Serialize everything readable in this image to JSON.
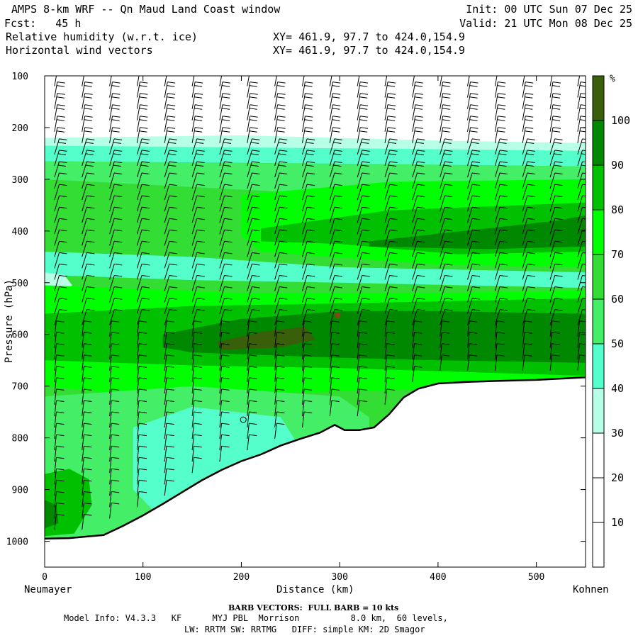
{
  "header": {
    "title": "AMPS 8-km WRF -- Qn Maud Land Coast window",
    "fcst": "Fcst:   45 h",
    "field1": "Relative humidity (w.r.t. ice)",
    "field2": "Horizontal wind vectors",
    "init": "Init: 00 UTC Sun 07 Dec 25",
    "valid": "Valid: 21 UTC Mon 08 Dec 25",
    "xy1": "XY= 461.9, 97.7 to 424.0,154.9",
    "xy2": "XY= 461.9, 97.7 to 424.0,154.9"
  },
  "axes": {
    "left_end": "Neumayer",
    "right_end": "Kohnen",
    "xlabel": "Distance (km)",
    "ylabel": "Pressure (hPa)"
  },
  "footer": {
    "barb_note": "BARB VECTORS:  FULL BARB = 10 kts",
    "model_info": "Model Info: V4.3.3   KF      MYJ PBL  Morrison          8.0 km,  60 levels,",
    "physics": "LW: RRTM SW: RRTMG   DIFF: simple KM: 2D Smagor"
  },
  "colors": {
    "rh_0_30": "#ffffff",
    "rh_30_40": "#b8ffe8",
    "rh_40_50": "#55ffcc",
    "rh_50_60": "#44ee66",
    "rh_60_70": "#33dd33",
    "rh_70_80": "#00ff00",
    "rh_80_90": "#00c000",
    "rh_90_100": "#008800",
    "rh_100": "#3a5f0b",
    "terrain": "#ffffff",
    "accent_dot": "#8b4513"
  },
  "chart_data": {
    "type": "heatmap",
    "title": "Relative humidity (w.r.t. ice) cross-section with horizontal wind vectors",
    "xlabel": "Distance (km)",
    "ylabel": "Pressure (hPa)",
    "xlim": [
      0,
      550
    ],
    "ylim": [
      1050,
      100
    ],
    "x_ticks": [
      0,
      100,
      200,
      300,
      400,
      500
    ],
    "y_ticks": [
      100,
      200,
      300,
      400,
      500,
      600,
      700,
      800,
      900,
      1000
    ],
    "colorbar": {
      "unit": "%",
      "ticks": [
        10,
        20,
        30,
        40,
        50,
        60,
        70,
        80,
        90,
        100
      ],
      "levels": [
        0,
        30,
        40,
        50,
        60,
        70,
        80,
        90,
        100,
        110
      ]
    },
    "surface_pressure": {
      "x": [
        0,
        25,
        60,
        80,
        100,
        120,
        140,
        160,
        180,
        200,
        220,
        240,
        260,
        280,
        295,
        305,
        320,
        335,
        350,
        365,
        380,
        400,
        430,
        460,
        500,
        530,
        550
      ],
      "p": [
        995,
        994,
        988,
        970,
        950,
        928,
        905,
        882,
        862,
        845,
        832,
        815,
        802,
        790,
        775,
        785,
        785,
        780,
        755,
        722,
        705,
        695,
        692,
        690,
        688,
        685,
        683
      ]
    },
    "rh_features": [
      {
        "region": "upper dry layer",
        "x_range": [
          0,
          550
        ],
        "p_range": [
          100,
          255
        ],
        "rh": "<30"
      },
      {
        "region": "upper moist band",
        "x_range": [
          220,
          550
        ],
        "p_range": [
          330,
          450
        ],
        "rh": "80-90"
      },
      {
        "region": "dry intrusion near Neumayer",
        "x_range": [
          0,
          25
        ],
        "p_range": [
          480,
          530
        ],
        "rh": "30-40"
      },
      {
        "region": "mid-level saturated layer",
        "x_range": [
          175,
          275
        ],
        "p_range": [
          580,
          625
        ],
        "rh": ">100"
      },
      {
        "region": "mid moist band",
        "x_range": [
          0,
          550
        ],
        "p_range": [
          540,
          690
        ],
        "rh": "80-90"
      },
      {
        "region": "boundary layer moist pocket",
        "x_range": [
          0,
          45
        ],
        "p_range": [
          870,
          990
        ],
        "rh": "80-90"
      }
    ],
    "wind_barbs": {
      "full_barb_kts": 10,
      "x_spacing_km": 28
    }
  }
}
